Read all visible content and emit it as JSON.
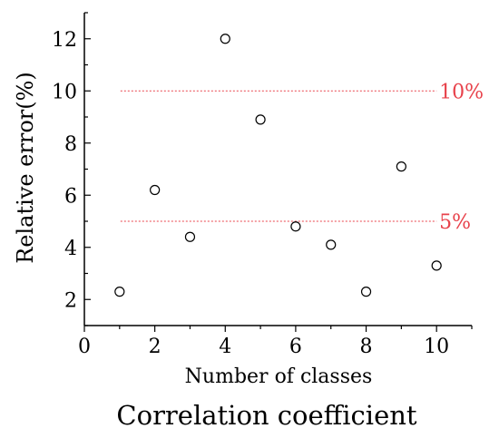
{
  "chart_data": {
    "type": "scatter",
    "title": "",
    "xlabel": "Number of classes",
    "ylabel": "Relative error(%)",
    "caption": "Correlation coefficient",
    "xlim": [
      0,
      11
    ],
    "ylim": [
      1,
      13
    ],
    "xticks": [
      0,
      2,
      4,
      6,
      8,
      10
    ],
    "yticks": [
      2,
      4,
      6,
      8,
      10,
      12
    ],
    "grid": false,
    "points": [
      {
        "x": 1,
        "y": 2.3
      },
      {
        "x": 2,
        "y": 6.2
      },
      {
        "x": 3,
        "y": 4.4
      },
      {
        "x": 4,
        "y": 12.0
      },
      {
        "x": 5,
        "y": 8.9
      },
      {
        "x": 6,
        "y": 4.8
      },
      {
        "x": 7,
        "y": 4.1
      },
      {
        "x": 8,
        "y": 2.3
      },
      {
        "x": 9,
        "y": 7.1
      },
      {
        "x": 10,
        "y": 3.3
      }
    ],
    "reference_lines": [
      {
        "y": 10,
        "label": "10%",
        "x_from": 1,
        "x_to": 10,
        "color": "#e8424b"
      },
      {
        "y": 5,
        "label": "5%",
        "x_from": 1,
        "x_to": 10,
        "color": "#e8424b"
      }
    ],
    "marker": {
      "shape": "open-circle",
      "color": "#000000"
    }
  }
}
